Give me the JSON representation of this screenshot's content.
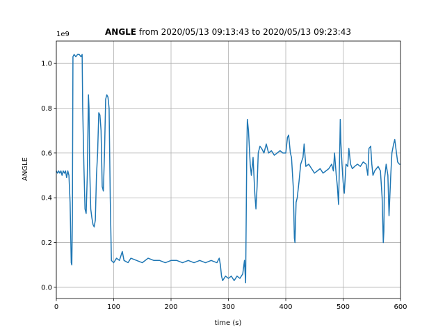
{
  "chart_data": {
    "type": "line",
    "title": [
      "ANGLE",
      "from 2020/05/13 09:13:43 to 2020/05/13 09:23:43"
    ],
    "xlabel": "time (s)",
    "ylabel": "ANGLE",
    "y_offset_label": "1e9",
    "grid": true,
    "xlim": [
      0,
      600
    ],
    "xticks": [
      0,
      100,
      200,
      300,
      400,
      500,
      600
    ],
    "ylim": [
      -0.05,
      1.1
    ],
    "yticks": [
      {
        "value": 0,
        "label": "0.0"
      },
      {
        "value": 0.2,
        "label": "0.2"
      },
      {
        "value": 0.4,
        "label": "0.4"
      },
      {
        "value": 0.6,
        "label": "0.6"
      },
      {
        "value": 0.8,
        "label": "0.8"
      },
      {
        "value": 1,
        "label": "1.0"
      }
    ],
    "x": [
      0,
      2,
      4,
      6,
      8,
      10,
      12,
      14,
      16,
      18,
      20,
      22,
      24,
      26,
      27,
      28,
      29,
      31,
      34,
      37,
      40,
      43,
      45,
      46,
      48,
      50,
      52,
      54,
      56,
      57,
      58,
      60,
      62,
      64,
      66,
      68,
      70,
      72,
      74,
      76,
      78,
      80,
      82,
      84,
      86,
      88,
      90,
      92,
      94,
      96,
      100,
      105,
      110,
      115,
      118,
      125,
      130,
      140,
      150,
      160,
      170,
      180,
      190,
      200,
      210,
      220,
      230,
      240,
      250,
      260,
      270,
      280,
      284,
      286,
      288,
      290,
      295,
      300,
      305,
      310,
      315,
      320,
      325,
      328,
      330,
      331,
      332,
      333,
      335,
      338,
      340,
      343,
      346,
      348,
      350,
      352,
      355,
      358,
      362,
      366,
      370,
      375,
      380,
      385,
      390,
      395,
      400,
      403,
      405,
      408,
      410,
      413,
      415,
      416,
      418,
      420,
      423,
      426,
      430,
      432,
      435,
      440,
      445,
      450,
      455,
      460,
      465,
      470,
      475,
      480,
      483,
      485,
      488,
      490,
      492,
      494,
      495,
      496,
      498,
      500,
      502,
      505,
      508,
      510,
      513,
      516,
      520,
      525,
      530,
      535,
      540,
      543,
      545,
      548,
      550,
      552,
      555,
      558,
      561,
      565,
      568,
      570,
      571,
      572,
      575,
      578,
      580,
      583,
      585,
      588,
      590,
      593,
      595,
      598,
      600
    ],
    "series": [
      {
        "color": "#1f77b4",
        "values": [
          0.52,
          0.51,
          0.52,
          0.51,
          0.52,
          0.5,
          0.52,
          0.51,
          0.52,
          0.49,
          0.52,
          0.5,
          0.38,
          0.11,
          0.1,
          0.3,
          1.03,
          1.04,
          1.03,
          1.04,
          1.04,
          1.03,
          1.04,
          0.8,
          0.55,
          0.35,
          0.33,
          0.5,
          0.86,
          0.8,
          0.55,
          0.35,
          0.31,
          0.28,
          0.27,
          0.3,
          0.5,
          0.6,
          0.78,
          0.77,
          0.7,
          0.45,
          0.43,
          0.6,
          0.84,
          0.86,
          0.85,
          0.8,
          0.4,
          0.12,
          0.11,
          0.13,
          0.12,
          0.16,
          0.12,
          0.11,
          0.13,
          0.12,
          0.11,
          0.13,
          0.12,
          0.12,
          0.11,
          0.12,
          0.12,
          0.11,
          0.12,
          0.11,
          0.12,
          0.11,
          0.12,
          0.11,
          0.13,
          0.1,
          0.05,
          0.03,
          0.05,
          0.04,
          0.05,
          0.03,
          0.05,
          0.04,
          0.06,
          0.12,
          0.02,
          0.3,
          0.6,
          0.75,
          0.7,
          0.55,
          0.5,
          0.58,
          0.42,
          0.35,
          0.45,
          0.6,
          0.63,
          0.62,
          0.6,
          0.64,
          0.6,
          0.61,
          0.59,
          0.6,
          0.61,
          0.6,
          0.6,
          0.67,
          0.68,
          0.6,
          0.58,
          0.45,
          0.22,
          0.2,
          0.38,
          0.4,
          0.47,
          0.55,
          0.58,
          0.64,
          0.54,
          0.55,
          0.53,
          0.51,
          0.52,
          0.53,
          0.51,
          0.52,
          0.53,
          0.55,
          0.52,
          0.6,
          0.5,
          0.45,
          0.37,
          0.6,
          0.75,
          0.65,
          0.55,
          0.47,
          0.42,
          0.55,
          0.54,
          0.62,
          0.55,
          0.53,
          0.54,
          0.55,
          0.54,
          0.56,
          0.55,
          0.5,
          0.62,
          0.63,
          0.55,
          0.5,
          0.52,
          0.53,
          0.54,
          0.52,
          0.4,
          0.2,
          0.25,
          0.48,
          0.55,
          0.5,
          0.32,
          0.5,
          0.6,
          0.64,
          0.66,
          0.6,
          0.56,
          0.55,
          0.55
        ]
      }
    ]
  }
}
